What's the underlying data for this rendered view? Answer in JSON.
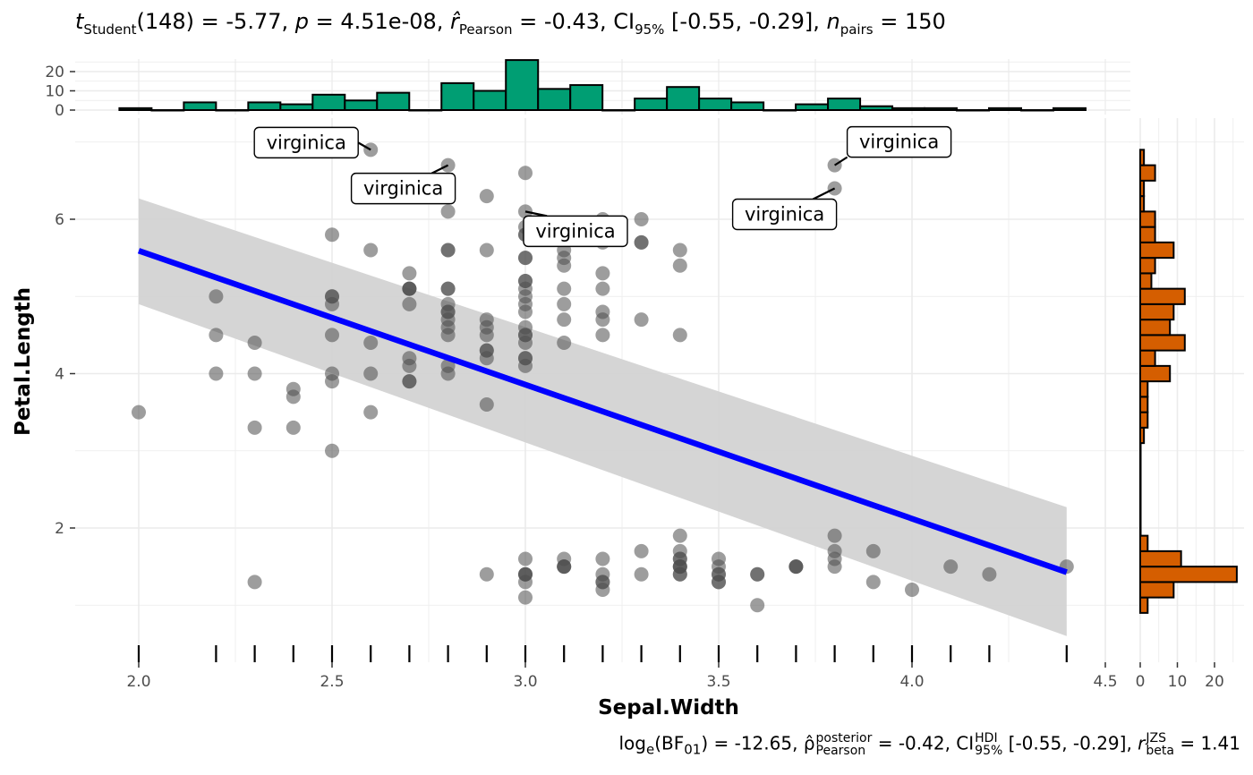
{
  "title": {
    "t_label": "t",
    "t_sub": "Student",
    "df": "(148)",
    "t_value": " = -5.77, ",
    "p_label": "p",
    "p_value": " = 4.51e-08, ",
    "r_label": "r̂",
    "r_sub": "Pearson",
    "r_value": " = -0.43, CI",
    "ci_sub": "95%",
    "ci_value": " [-0.55, -0.29], ",
    "n_label": "n",
    "n_sub": "pairs",
    "n_value": " = 150"
  },
  "caption": {
    "log_label": "log",
    "log_sub": "e",
    "bf_open": "(BF",
    "bf_sub": "01",
    "bf_value": ") = -12.65, ",
    "rho_label": "ρ̂",
    "rho_sup": "posterior",
    "rho_sub": "Pearson",
    "rho_value": " = -0.42, CI",
    "ci_sup": "HDI",
    "ci_sub": "95%",
    "ci_value": " [-0.55, -0.29], ",
    "r_label": "r",
    "r_sup": "JZS",
    "r_sub": "beta",
    "r_value": " = 1.41"
  },
  "chart_data": {
    "type": "scatter",
    "xlabel": "Sepal.Width",
    "ylabel": "Petal.Length",
    "xlim": [
      1.95,
      4.45
    ],
    "ylim": [
      0.6,
      7.3
    ],
    "x_ticks": [
      "2.0",
      "2.5",
      "3.0",
      "3.5",
      "4.0",
      "4.5"
    ],
    "y_ticks": [
      "2",
      "4",
      "6"
    ],
    "grid": true,
    "point_color": "#7f7f7f",
    "point_alpha": 0.75,
    "regression": {
      "type": "lm",
      "slope": -1.7355,
      "intercept": 9.0632,
      "x_range": [
        2.0,
        4.4
      ],
      "ci_band": {
        "at_x": [
          2.0,
          4.4
        ],
        "upper": [
          6.27,
          2.27
        ],
        "lower": [
          4.9,
          0.6
        ]
      },
      "line_color": "#0000ff",
      "band_color": "#d3d3d3"
    },
    "points": {
      "x": [
        3.5,
        3.0,
        3.2,
        3.1,
        3.6,
        3.9,
        3.4,
        3.4,
        2.9,
        3.1,
        3.7,
        3.4,
        3.0,
        3.0,
        4.0,
        4.4,
        3.9,
        3.5,
        3.8,
        3.8,
        3.4,
        3.7,
        3.6,
        3.3,
        3.4,
        3.0,
        3.4,
        3.5,
        3.4,
        3.2,
        3.1,
        3.4,
        4.1,
        4.2,
        3.1,
        3.2,
        3.5,
        3.6,
        3.0,
        3.4,
        3.5,
        2.3,
        3.2,
        3.5,
        3.8,
        3.0,
        3.8,
        3.2,
        3.7,
        3.3,
        3.2,
        3.2,
        3.1,
        2.3,
        2.8,
        2.8,
        3.3,
        2.4,
        2.9,
        2.7,
        2.0,
        3.0,
        2.2,
        2.9,
        2.9,
        3.1,
        3.0,
        2.7,
        2.2,
        2.5,
        3.2,
        2.8,
        2.5,
        2.8,
        2.9,
        3.0,
        2.8,
        3.0,
        2.9,
        2.6,
        2.4,
        2.4,
        2.7,
        2.7,
        3.0,
        3.4,
        3.1,
        2.3,
        3.0,
        2.5,
        2.6,
        3.0,
        2.6,
        2.3,
        2.7,
        3.0,
        2.9,
        2.9,
        2.5,
        2.8,
        3.3,
        2.7,
        3.0,
        2.9,
        3.0,
        3.0,
        2.5,
        2.9,
        2.5,
        3.6,
        3.2,
        2.7,
        3.0,
        2.5,
        2.8,
        3.2,
        3.0,
        3.8,
        2.6,
        2.2,
        3.2,
        2.8,
        2.8,
        2.7,
        3.3,
        3.2,
        2.8,
        3.0,
        2.8,
        3.0,
        2.8,
        3.8,
        2.8,
        2.8,
        2.6,
        3.0,
        3.4,
        3.1,
        3.0,
        3.1,
        3.1,
        3.1,
        2.7,
        3.2,
        3.3,
        3.0,
        2.5,
        3.0,
        3.4,
        3.0
      ],
      "y": [
        1.4,
        1.4,
        1.3,
        1.5,
        1.4,
        1.7,
        1.4,
        1.5,
        1.4,
        1.5,
        1.5,
        1.6,
        1.4,
        1.1,
        1.2,
        1.5,
        1.3,
        1.4,
        1.7,
        1.5,
        1.7,
        1.5,
        1.0,
        1.7,
        1.9,
        1.6,
        1.6,
        1.5,
        1.4,
        1.6,
        1.6,
        1.5,
        1.5,
        1.4,
        1.5,
        1.2,
        1.3,
        1.4,
        1.3,
        1.5,
        1.3,
        1.3,
        1.3,
        1.6,
        1.9,
        1.4,
        1.6,
        1.4,
        1.5,
        1.4,
        4.7,
        4.5,
        4.9,
        4.0,
        4.6,
        4.5,
        4.7,
        3.3,
        4.6,
        3.9,
        3.5,
        4.2,
        4.0,
        4.7,
        3.6,
        4.4,
        4.5,
        4.1,
        4.5,
        3.9,
        4.8,
        4.0,
        4.9,
        4.7,
        4.3,
        4.4,
        4.8,
        5.0,
        4.5,
        3.5,
        3.8,
        3.7,
        3.9,
        5.1,
        4.5,
        4.5,
        4.7,
        4.4,
        4.1,
        4.0,
        4.4,
        4.6,
        4.0,
        3.3,
        4.2,
        4.2,
        4.2,
        4.3,
        3.0,
        4.1,
        6.0,
        5.1,
        5.9,
        5.6,
        5.8,
        6.6,
        4.5,
        6.3,
        5.8,
        6.1,
        5.1,
        5.3,
        5.5,
        5.0,
        5.1,
        5.3,
        5.5,
        6.7,
        6.9,
        5.0,
        5.7,
        4.9,
        6.7,
        4.9,
        5.7,
        6.0,
        4.8,
        4.9,
        5.6,
        5.8,
        6.1,
        6.4,
        5.6,
        5.1,
        5.6,
        6.1,
        5.6,
        5.5,
        4.8,
        5.4,
        5.6,
        5.1,
        5.1,
        5.9,
        5.7,
        5.2,
        5.0,
        5.2,
        5.4,
        5.1
      ]
    },
    "labels": [
      {
        "text": "virginica",
        "x": 2.6,
        "y": 6.9
      },
      {
        "text": "virginica",
        "x": 2.8,
        "y": 6.7
      },
      {
        "text": "virginica",
        "x": 3.0,
        "y": 6.1
      },
      {
        "text": "virginica",
        "x": 3.8,
        "y": 6.7
      },
      {
        "text": "virginica",
        "x": 3.8,
        "y": 6.4
      }
    ],
    "rug_x": [
      2.0,
      2.2,
      2.3,
      2.4,
      2.5,
      2.6,
      2.7,
      2.8,
      2.9,
      3.0,
      3.1,
      3.2,
      3.3,
      3.4,
      3.5,
      3.6,
      3.7,
      3.8,
      3.9,
      4.0,
      4.1,
      4.2,
      4.4
    ],
    "top_histogram": {
      "color": "#009e73",
      "y_ticks": [
        "0",
        "10",
        "20"
      ],
      "bins_start": 1.95,
      "bin_width": 0.0833,
      "counts": [
        1,
        0,
        4,
        0,
        4,
        3,
        8,
        5,
        9,
        0,
        14,
        10,
        26,
        11,
        13,
        0,
        6,
        12,
        6,
        4,
        0,
        3,
        6,
        2,
        1,
        1,
        0,
        1,
        0,
        1
      ]
    },
    "right_histogram": {
      "color": "#d55e00",
      "x_ticks": [
        "0",
        "10",
        "20"
      ],
      "bins_start": 0.9,
      "bin_width": 0.2,
      "counts": [
        2,
        9,
        26,
        11,
        2,
        0,
        0,
        0,
        0,
        0,
        0,
        1,
        2,
        2,
        2,
        8,
        4,
        12,
        8,
        9,
        12,
        3,
        4,
        9,
        4,
        4,
        1,
        1,
        4,
        1
      ]
    }
  }
}
